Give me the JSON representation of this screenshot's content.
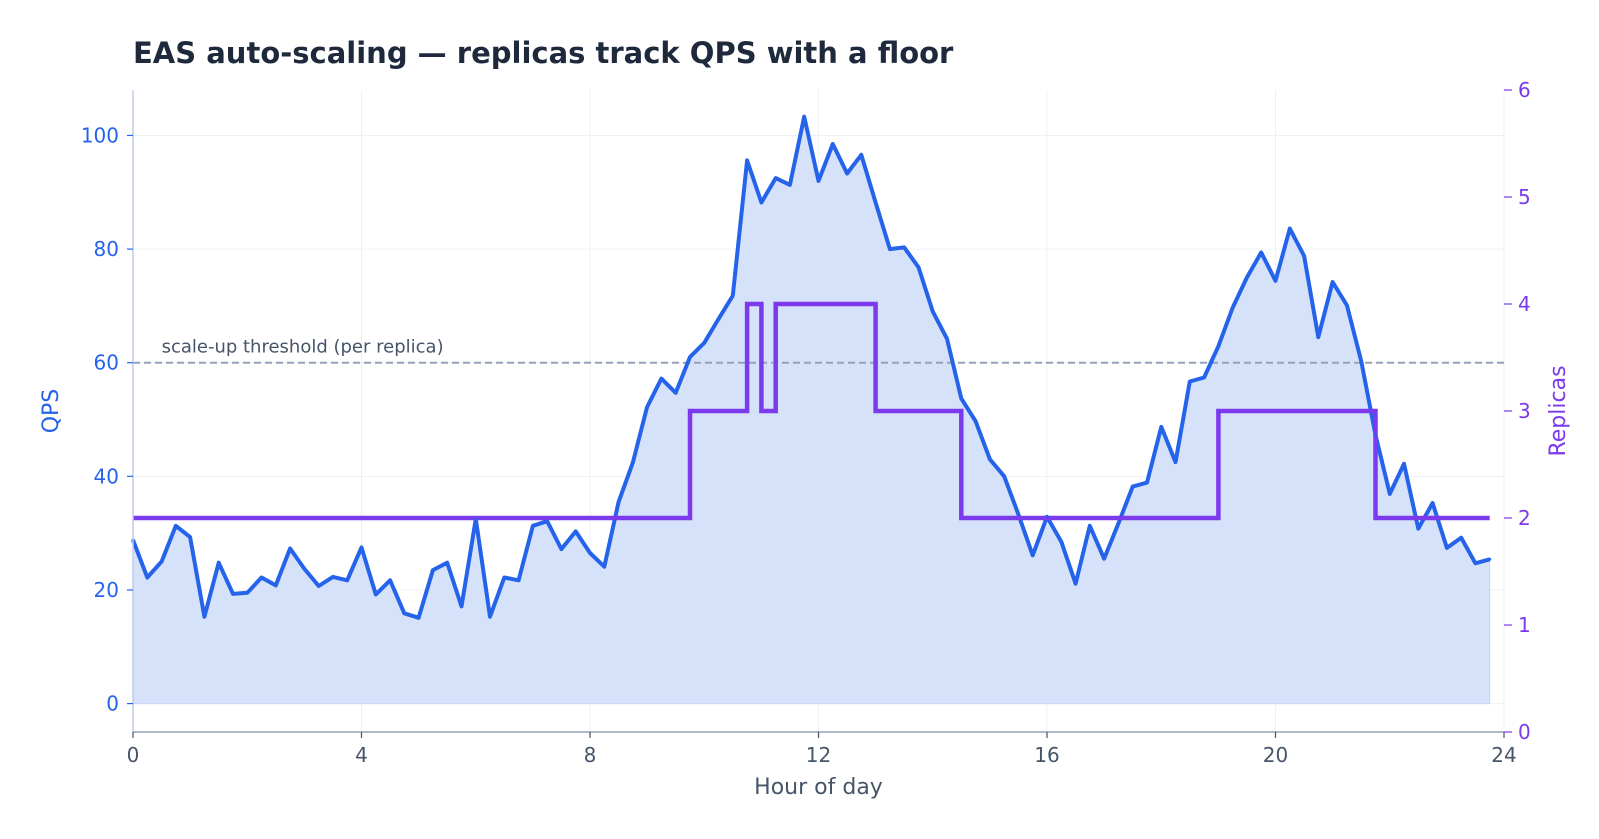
{
  "chart_data": {
    "type": "line",
    "title": "EAS auto-scaling — replicas track QPS with a floor",
    "xlabel": "Hour of day",
    "ylabel_left": "QPS",
    "ylabel_right": "Replicas",
    "xlim": [
      0,
      24
    ],
    "ylim_left": [
      -5,
      108
    ],
    "ylim_right": [
      0,
      6
    ],
    "x_ticks": [
      0,
      4,
      8,
      12,
      16,
      20,
      24
    ],
    "y_ticks_left": [
      0,
      20,
      40,
      60,
      80,
      100
    ],
    "y_ticks_right": [
      0,
      1,
      2,
      3,
      4,
      5,
      6
    ],
    "grid": true,
    "threshold": {
      "value": 60,
      "label": "scale-up threshold (per replica)"
    },
    "colors": {
      "qps": "#2563eb",
      "qps_fill": "#d6e2fa",
      "replicas": "#7c3aed",
      "threshold": "#94a3b8"
    },
    "series": [
      {
        "name": "QPS",
        "axis": "left",
        "style": "line-area",
        "x": [
          0,
          0.25,
          0.5,
          0.75,
          1,
          1.25,
          1.5,
          1.75,
          2,
          2.25,
          2.5,
          2.75,
          3,
          3.25,
          3.5,
          3.75,
          4,
          4.25,
          4.5,
          4.75,
          5,
          5.25,
          5.5,
          5.75,
          6,
          6.25,
          6.5,
          6.75,
          7,
          7.25,
          7.5,
          7.75,
          8,
          8.25,
          8.5,
          8.75,
          9,
          9.25,
          9.5,
          9.75,
          10,
          10.25,
          10.5,
          10.75,
          11,
          11.25,
          11.5,
          11.75,
          12,
          12.25,
          12.5,
          12.75,
          13,
          13.25,
          13.5,
          13.75,
          14,
          14.25,
          14.5,
          14.75,
          15,
          15.25,
          15.5,
          15.75,
          16,
          16.25,
          16.5,
          16.75,
          17,
          17.25,
          17.5,
          17.75,
          18,
          18.25,
          18.5,
          18.75,
          19,
          19.25,
          19.5,
          19.75,
          20,
          20.25,
          20.5,
          20.75,
          21,
          21.25,
          21.5,
          21.75,
          22,
          22.25,
          22.5,
          22.75,
          23,
          23.25,
          23.5,
          23.75
        ],
        "values": [
          28.8,
          22.2,
          25,
          31.3,
          29.3,
          15.3,
          24.8,
          19.3,
          19.5,
          22.2,
          20.8,
          27.3,
          23.7,
          20.7,
          22.3,
          21.7,
          27.5,
          19.2,
          21.7,
          15.9,
          15.1,
          23.5,
          24.8,
          17.1,
          32.5,
          15.3,
          22.2,
          21.7,
          31.3,
          32.1,
          27.2,
          30.3,
          26.5,
          24.1,
          35.5,
          42.4,
          52.2,
          57.2,
          54.7,
          61,
          63.5,
          67.7,
          71.8,
          95.6,
          88.2,
          92.5,
          91.3,
          103.3,
          92,
          98.5,
          93.3,
          96.6,
          88.2,
          80,
          80.3,
          76.8,
          69,
          64.2,
          53.7,
          49.7,
          43,
          40,
          33.3,
          26.1,
          32.9,
          28.5,
          21.1,
          31.3,
          25.5,
          31.7,
          38.2,
          38.9,
          48.7,
          42.5,
          56.7,
          57.4,
          62.9,
          69.7,
          75,
          79.4,
          74.4,
          83.6,
          78.8,
          64.5,
          74.2,
          70.1,
          60.3,
          47.3,
          36.9,
          42.2,
          30.8,
          35.3,
          27.4,
          29.2,
          24.7,
          25.4
        ]
      },
      {
        "name": "Replicas",
        "axis": "right",
        "style": "step-post",
        "x": [
          0,
          9.75,
          10.75,
          11,
          11.25,
          13,
          14.5,
          19,
          21.75,
          23.75
        ],
        "values": [
          2,
          3,
          4,
          3,
          4,
          3,
          2,
          3,
          2,
          2
        ]
      }
    ]
  }
}
